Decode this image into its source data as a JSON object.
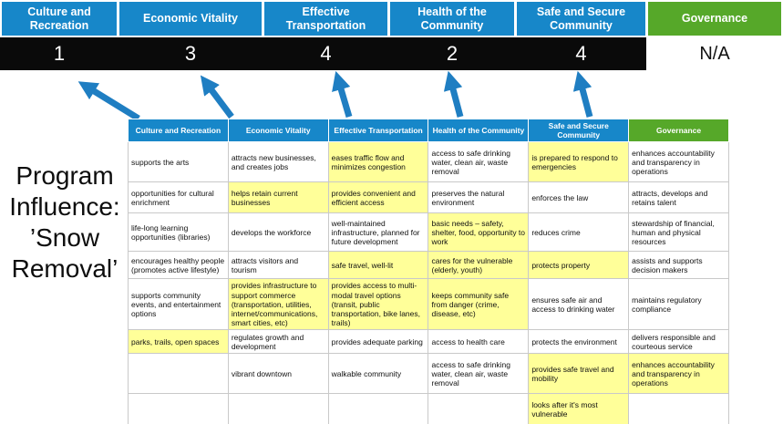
{
  "program": {
    "label": "Program Influence: ’Snow Removal’"
  },
  "colors": {
    "pillar_blue": "#1787c9",
    "pillar_green": "#56a829",
    "score_band": "#0a0a0a",
    "highlight": "#ffff99",
    "arrow": "#1f7ec2"
  },
  "scoreboard": {
    "columns": [
      {
        "label": "Culture and Recreation",
        "score": "1",
        "theme": "blue"
      },
      {
        "label": "Economic Vitality",
        "score": "3",
        "theme": "blue"
      },
      {
        "label": "Effective Transportation",
        "score": "4",
        "theme": "blue"
      },
      {
        "label": "Health of the Community",
        "score": "2",
        "theme": "blue"
      },
      {
        "label": "Safe and Secure Community",
        "score": "4",
        "theme": "blue"
      },
      {
        "label": "Governance",
        "score": "N/A",
        "theme": "green"
      }
    ]
  },
  "matrix": {
    "headers": [
      {
        "label": "Culture and Recreation",
        "theme": "blue"
      },
      {
        "label": "Economic Vitality",
        "theme": "blue"
      },
      {
        "label": "Effective Transportation",
        "theme": "blue"
      },
      {
        "label": "Health of the Community",
        "theme": "blue"
      },
      {
        "label": "Safe and Secure Community",
        "theme": "blue"
      },
      {
        "label": "Governance",
        "theme": "green"
      }
    ],
    "rows": [
      [
        {
          "text": "supports the arts",
          "highlight": false
        },
        {
          "text": "attracts new businesses, and creates jobs",
          "highlight": false
        },
        {
          "text": "eases traffic flow and minimizes congestion",
          "highlight": true
        },
        {
          "text": "access to safe drinking water, clean air, waste removal",
          "highlight": false
        },
        {
          "text": "is prepared to respond to emergencies",
          "highlight": true
        },
        {
          "text": "enhances accountability and transparency in operations",
          "highlight": false
        }
      ],
      [
        {
          "text": "opportunities for cultural enrichment",
          "highlight": false
        },
        {
          "text": "helps retain current businesses",
          "highlight": true
        },
        {
          "text": "provides convenient and efficient access",
          "highlight": true
        },
        {
          "text": "preserves the natural environment",
          "highlight": false
        },
        {
          "text": "enforces the law",
          "highlight": false
        },
        {
          "text": "attracts, develops and retains talent",
          "highlight": false
        }
      ],
      [
        {
          "text": "life-long learning opportunities (libraries)",
          "highlight": false
        },
        {
          "text": "develops the workforce",
          "highlight": false
        },
        {
          "text": "well-maintained infrastructure, planned for future development",
          "highlight": false
        },
        {
          "text": "basic needs – safety, shelter, food, opportunity to work",
          "highlight": true
        },
        {
          "text": "reduces crime",
          "highlight": false
        },
        {
          "text": "stewardship of financial, human and physical resources",
          "highlight": false
        }
      ],
      [
        {
          "text": "encourages healthy people (promotes active lifestyle)",
          "highlight": false
        },
        {
          "text": "attracts visitors and tourism",
          "highlight": false
        },
        {
          "text": "safe travel, well-lit",
          "highlight": true
        },
        {
          "text": "cares for the vulnerable (elderly, youth)",
          "highlight": true
        },
        {
          "text": "protects property",
          "highlight": true
        },
        {
          "text": "assists and supports decision makers",
          "highlight": false
        }
      ],
      [
        {
          "text": "supports community events, and entertainment options",
          "highlight": false
        },
        {
          "text": "provides infrastructure to support commerce (transportation, utilities, internet/communications, smart cities, etc)",
          "highlight": true
        },
        {
          "text": "provides access to multi-modal travel options (transit, public transportation, bike lanes, trails)",
          "highlight": true
        },
        {
          "text": "keeps community safe from danger (crime, disease, etc)",
          "highlight": true
        },
        {
          "text": "ensures safe air and access to drinking water",
          "highlight": false
        },
        {
          "text": "maintains regulatory compliance",
          "highlight": false
        }
      ],
      [
        {
          "text": "parks, trails, open spaces",
          "highlight": true
        },
        {
          "text": "regulates growth and development",
          "highlight": false
        },
        {
          "text": "provides adequate parking",
          "highlight": false
        },
        {
          "text": "access to health care",
          "highlight": false
        },
        {
          "text": "protects the environment",
          "highlight": false
        },
        {
          "text": "delivers responsible and courteous service",
          "highlight": false
        }
      ],
      [
        {
          "text": "",
          "highlight": false
        },
        {
          "text": "vibrant downtown",
          "highlight": false
        },
        {
          "text": "walkable community",
          "highlight": false
        },
        {
          "text": "access to safe drinking water, clean air, waste removal",
          "highlight": false
        },
        {
          "text": "provides safe travel and mobility",
          "highlight": true
        },
        {
          "text": "enhances accountability and transparency in operations",
          "highlight": true
        }
      ],
      [
        {
          "text": "",
          "highlight": false
        },
        {
          "text": "",
          "highlight": false
        },
        {
          "text": "",
          "highlight": false
        },
        {
          "text": "",
          "highlight": false
        },
        {
          "text": "looks after it's most vulnerable",
          "highlight": true
        },
        {
          "text": "",
          "highlight": false
        }
      ]
    ]
  }
}
